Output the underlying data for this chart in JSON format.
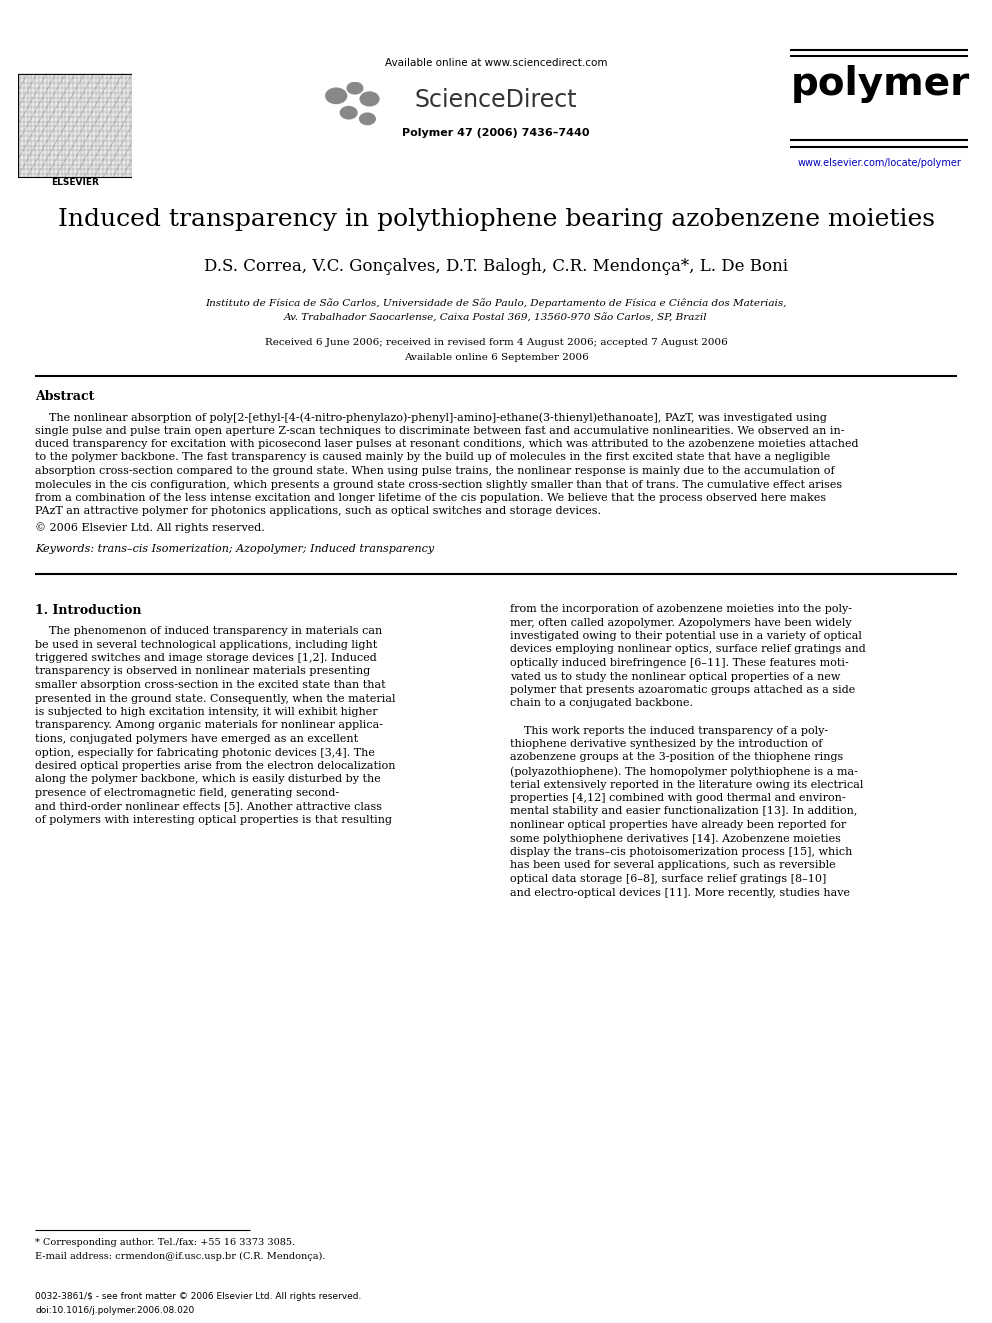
{
  "bg_color": "#ffffff",
  "title": "Induced transparency in polythiophene bearing azobenzene moieties",
  "authors": "D.S. Correa, V.C. Gonçalves, D.T. Balogh, C.R. Mendonça*, L. De Boni",
  "affiliation1": "Instituto de Física de São Carlos, Universidade de São Paulo, Departamento de Física e Ciência dos Materiais,",
  "affiliation2": "Av. Trabalhador Saocarlense, Caixa Postal 369, 13560-970 São Carlos, SP, Brazil",
  "received": "Received 6 June 2006; received in revised form 4 August 2006; accepted 7 August 2006",
  "available": "Available online 6 September 2006",
  "abstract_title": "Abstract",
  "copyright": "© 2006 Elsevier Ltd. All rights reserved.",
  "keywords": "Keywords: trans–cis Isomerization; Azopolymer; Induced transparency",
  "section1_title": "1. Introduction",
  "footnote1": "* Corresponding author. Tel./fax: +55 16 3373 3085.",
  "footnote2": "E-mail address: crmendon@if.usc.usp.br (C.R. Mendonça).",
  "footer1": "0032-3861/$ - see front matter © 2006 Elsevier Ltd. All rights reserved.",
  "footer2": "doi:10.1016/j.polymer.2006.08.020",
  "journal_name": "polymer",
  "journal_ref": "Polymer 47 (2006) 7436–7440",
  "sd_url": "Available online at www.sciencedirect.com",
  "elsevier_url": "www.elsevier.com/locate/polymer",
  "abstract_text_lines": [
    "    The nonlinear absorption of poly[2-[ethyl-[4-(4-nitro-phenylazo)-phenyl]-amino]-ethane(3-thienyl)ethanoate], PAzT, was investigated using",
    "single pulse and pulse train open aperture Z-scan techniques to discriminate between fast and accumulative nonlinearities. We observed an in-",
    "duced transparency for excitation with picosecond laser pulses at resonant conditions, which was attributed to the azobenzene moieties attached",
    "to the polymer backbone. The fast transparency is caused mainly by the build up of molecules in the first excited state that have a negligible",
    "absorption cross-section compared to the ground state. When using pulse trains, the nonlinear response is mainly due to the accumulation of",
    "molecules in the cis configuration, which presents a ground state cross-section slightly smaller than that of trans. The cumulative effect arises",
    "from a combination of the less intense excitation and longer lifetime of the cis population. We believe that the process observed here makes",
    "PAzT an attractive polymer for photonics applications, such as optical switches and storage devices."
  ],
  "left_col_lines": [
    "    The phenomenon of induced transparency in materials can",
    "be used in several technological applications, including light",
    "triggered switches and image storage devices [1,2]. Induced",
    "transparency is observed in nonlinear materials presenting",
    "smaller absorption cross-section in the excited state than that",
    "presented in the ground state. Consequently, when the material",
    "is subjected to high excitation intensity, it will exhibit higher",
    "transparency. Among organic materials for nonlinear applica-",
    "tions, conjugated polymers have emerged as an excellent",
    "option, especially for fabricating photonic devices [3,4]. The",
    "desired optical properties arise from the electron delocalization",
    "along the polymer backbone, which is easily disturbed by the",
    "presence of electromagnetic field, generating second-",
    "and third-order nonlinear effects [5]. Another attractive class",
    "of polymers with interesting optical properties is that resulting"
  ],
  "right_col_lines": [
    "from the incorporation of azobenzene moieties into the poly-",
    "mer, often called azopolymer. Azopolymers have been widely",
    "investigated owing to their potential use in a variety of optical",
    "devices employing nonlinear optics, surface relief gratings and",
    "optically induced birefringence [6–11]. These features moti-",
    "vated us to study the nonlinear optical properties of a new",
    "polymer that presents azoaromatic groups attached as a side",
    "chain to a conjugated backbone.",
    "",
    "    This work reports the induced transparency of a poly-",
    "thiophene derivative synthesized by the introduction of",
    "azobenzene groups at the 3-position of the thiophene rings",
    "(polyazothiophene). The homopolymer polythiophene is a ma-",
    "terial extensively reported in the literature owing its electrical",
    "properties [4,12] combined with good thermal and environ-",
    "mental stability and easier functionalization [13]. In addition,",
    "nonlinear optical properties have already been reported for",
    "some polythiophene derivatives [14]. Azobenzene moieties",
    "display the trans–cis photoisomerization process [15], which",
    "has been used for several applications, such as reversible",
    "optical data storage [6–8], surface relief gratings [8–10]",
    "and electro-optical devices [11]. More recently, studies have"
  ]
}
